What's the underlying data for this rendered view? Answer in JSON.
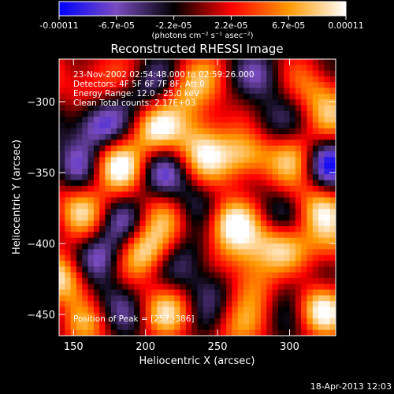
{
  "colorbar": {
    "tick_labels": [
      "-0.00011",
      "-6.7e-05",
      "-2.2e-05",
      "2.2e-05",
      "6.7e-05",
      "0.00011"
    ],
    "unit": "(photons cm⁻² s⁻¹ asec⁻²)",
    "stops": [
      "#0000ff",
      "#7a4cc0",
      "#000000",
      "#ff0000",
      "#ff9900",
      "#ffffff"
    ]
  },
  "chart_data": {
    "type": "heatmap",
    "title": "Reconstructed RHESSI Image",
    "xlabel": "Heliocentric X (arcsec)",
    "ylabel": "Heliocentric Y (arcsec)",
    "xlim": [
      140,
      332
    ],
    "ylim": [
      -465,
      -270
    ],
    "xticks": [
      150,
      200,
      250,
      300
    ],
    "yticks": [
      -300,
      -350,
      -400,
      -450
    ],
    "zlim": [
      -0.00011,
      0.00011
    ],
    "peak": [
      257,
      -386
    ],
    "annotations": [
      "23-Nov-2002 02:54:48.000 to 02:59:26.000",
      "Detectors: 4F 5F 6F 7F 8F, Att 0",
      "Energy Range: 12.0 - 25.0 keV",
      "Clean     Total counts: 2.17E+03"
    ],
    "peak_label": "Position of Peak = [257,-386]",
    "blobs": [
      {
        "x": 160,
        "y": -285,
        "z": 6e-05
      },
      {
        "x": 200,
        "y": -290,
        "z": -5e-05
      },
      {
        "x": 230,
        "y": -290,
        "z": 7e-05
      },
      {
        "x": 285,
        "y": -282,
        "z": -4e-05
      },
      {
        "x": 320,
        "y": -290,
        "z": 6e-05
      },
      {
        "x": 165,
        "y": -317,
        "z": -0.0001
      },
      {
        "x": 205,
        "y": -320,
        "z": 9e-05
      },
      {
        "x": 240,
        "y": -315,
        "z": 5e-05
      },
      {
        "x": 278,
        "y": -315,
        "z": -4e-05
      },
      {
        "x": 330,
        "y": -310,
        "z": 4e-05
      },
      {
        "x": 150,
        "y": -345,
        "z": -5e-05
      },
      {
        "x": 180,
        "y": -345,
        "z": 0.0001
      },
      {
        "x": 210,
        "y": -350,
        "z": -5e-05
      },
      {
        "x": 240,
        "y": -335,
        "z": 8e-05
      },
      {
        "x": 270,
        "y": -340,
        "z": 0.0001
      },
      {
        "x": 305,
        "y": -338,
        "z": 7e-05
      },
      {
        "x": 325,
        "y": -342,
        "z": -9e-05
      },
      {
        "x": 155,
        "y": -375,
        "z": 7e-05
      },
      {
        "x": 185,
        "y": -385,
        "z": -4e-05
      },
      {
        "x": 210,
        "y": -380,
        "z": 4e-05
      },
      {
        "x": 235,
        "y": -370,
        "z": -4e-05
      },
      {
        "x": 257,
        "y": -386,
        "z": 0.00011
      },
      {
        "x": 290,
        "y": -380,
        "z": -4e-05
      },
      {
        "x": 320,
        "y": -375,
        "z": 8e-05
      },
      {
        "x": 170,
        "y": -410,
        "z": -7e-05
      },
      {
        "x": 200,
        "y": -405,
        "z": 0.0001
      },
      {
        "x": 230,
        "y": -410,
        "z": -4e-05
      },
      {
        "x": 270,
        "y": -410,
        "z": 6e-05
      },
      {
        "x": 295,
        "y": -400,
        "z": 9e-05
      },
      {
        "x": 330,
        "y": -405,
        "z": 5e-05
      },
      {
        "x": 145,
        "y": -425,
        "z": 0.0001
      },
      {
        "x": 180,
        "y": -440,
        "z": -4e-05
      },
      {
        "x": 215,
        "y": -445,
        "z": 7e-05
      },
      {
        "x": 245,
        "y": -430,
        "z": -6e-05
      },
      {
        "x": 275,
        "y": -430,
        "z": 7e-05
      },
      {
        "x": 300,
        "y": -430,
        "z": -5e-05
      },
      {
        "x": 320,
        "y": -445,
        "z": 0.0001
      },
      {
        "x": 160,
        "y": -460,
        "z": 4e-05
      },
      {
        "x": 260,
        "y": -462,
        "z": 4e-05
      }
    ]
  },
  "footer": {
    "timestamp": "18-Apr-2013 12:03"
  }
}
